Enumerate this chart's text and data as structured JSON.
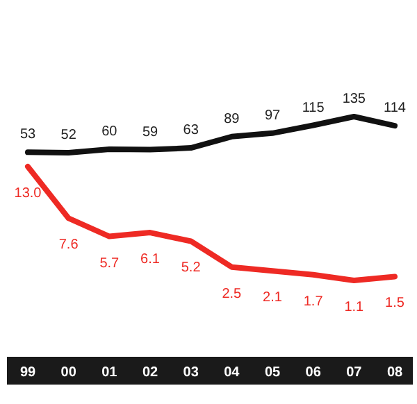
{
  "chart_data": [
    {
      "type": "line",
      "categories": [
        "99",
        "00",
        "01",
        "02",
        "03",
        "04",
        "05",
        "06",
        "07",
        "08"
      ],
      "series": [
        {
          "color": "#111111",
          "values": [
            53,
            52,
            60,
            59,
            63,
            89,
            97,
            115,
            135,
            114
          ]
        }
      ],
      "data_labels": true
    },
    {
      "type": "line",
      "categories": [
        null,
        null,
        null,
        null,
        null,
        null,
        null,
        null,
        null,
        null
      ],
      "series": [
        {
          "color": "#ee2a24",
          "values": [
            13.0,
            7.6,
            5.7,
            6.1,
            5.2,
            2.5,
            2.1,
            1.7,
            1.1,
            1.5
          ],
          "value_labels": [
            "13.0",
            "7.6",
            "5.7",
            "6.1",
            "5.2",
            "2.5",
            "2.1",
            "1.7",
            "1.1",
            "1.5"
          ]
        }
      ]
    }
  ]
}
